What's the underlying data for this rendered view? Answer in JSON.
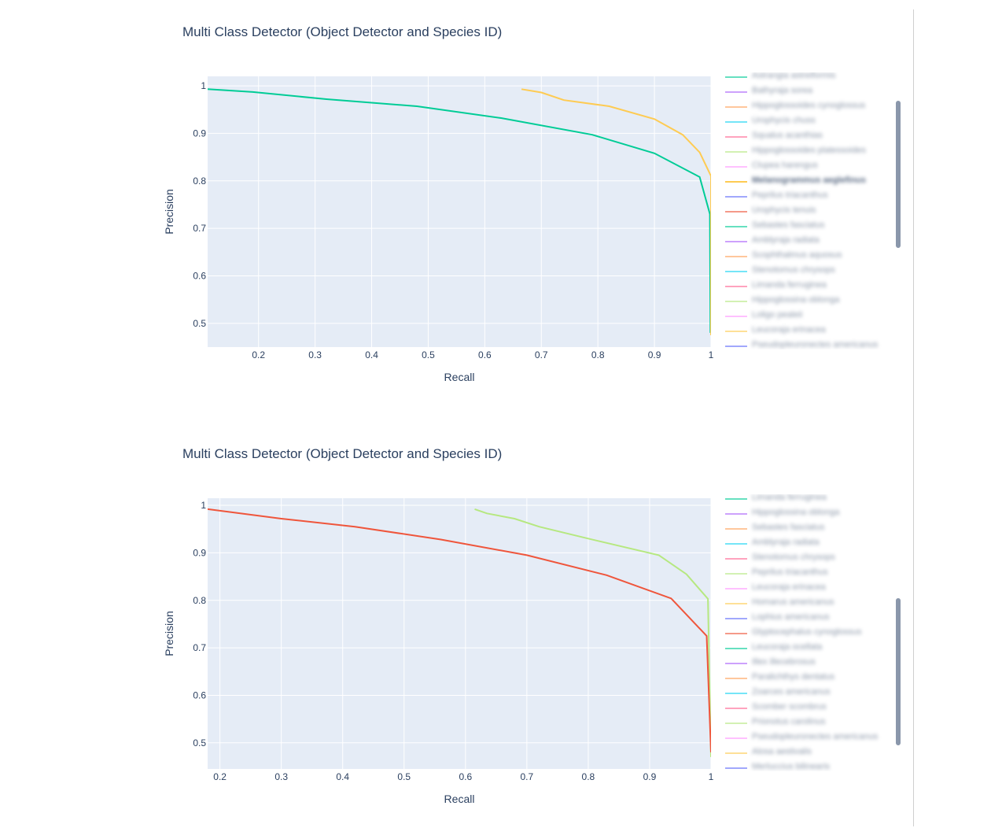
{
  "chart_data": [
    {
      "type": "line",
      "title": "Multi Class Detector (Object Detector and Species ID)",
      "xlabel": "Recall",
      "ylabel": "Precision",
      "xlim": [
        0.11,
        1.0
      ],
      "ylim": [
        0.45,
        1.02
      ],
      "x_ticks": [
        "0.2",
        "0.3",
        "0.4",
        "0.5",
        "0.6",
        "0.7",
        "0.8",
        "0.9",
        "1"
      ],
      "x_tick_values": [
        0.2,
        0.3,
        0.4,
        0.5,
        0.6,
        0.7,
        0.8,
        0.9,
        1.0
      ],
      "y_ticks": [
        "0.5",
        "0.6",
        "0.7",
        "0.8",
        "0.9",
        "1"
      ],
      "y_tick_values": [
        0.5,
        0.6,
        0.7,
        0.8,
        0.9,
        1.0
      ],
      "grid": true,
      "legend_position": "right",
      "series": [
        {
          "color": "#00cc96",
          "x": [
            0.11,
            0.19,
            0.32,
            0.48,
            0.63,
            0.79,
            0.9,
            0.98,
            0.998,
            0.999
          ],
          "y": [
            0.993,
            0.987,
            0.972,
            0.957,
            0.932,
            0.897,
            0.858,
            0.808,
            0.73,
            0.48
          ]
        },
        {
          "color": "#fecb52",
          "x": [
            0.665,
            0.7,
            0.74,
            0.82,
            0.9,
            0.95,
            0.98,
            1.0,
            1.0
          ],
          "y": [
            0.993,
            0.986,
            0.97,
            0.957,
            0.93,
            0.897,
            0.86,
            0.81,
            0.475
          ]
        }
      ],
      "legend": {
        "active_index": 7,
        "entries": [
          {
            "label": "Astrangia astreiformis",
            "color": "#00cc96"
          },
          {
            "label": "Bathyraja sorea",
            "color": "#ab63fa"
          },
          {
            "label": "Hippoglossoides cynoglossus",
            "color": "#ffa15a"
          },
          {
            "label": "Urophycis chuss",
            "color": "#19d3f3"
          },
          {
            "label": "Squalus acanthias",
            "color": "#ff6692"
          },
          {
            "label": "Hippoglossoides platessoides",
            "color": "#b6e880"
          },
          {
            "label": "Clupea harengus",
            "color": "#ff97ff"
          },
          {
            "label": "Melanogrammus aeglefinus",
            "color": "#fecb52"
          },
          {
            "label": "Peprilus triacanthus",
            "color": "#636efa"
          },
          {
            "label": "Urophycis tenuis",
            "color": "#ef553b"
          },
          {
            "label": "Sebastes fasciatus",
            "color": "#00cc96"
          },
          {
            "label": "Amblyraja radiata",
            "color": "#ab63fa"
          },
          {
            "label": "Scophthalmus aquosus",
            "color": "#ffa15a"
          },
          {
            "label": "Stenotomus chrysops",
            "color": "#19d3f3"
          },
          {
            "label": "Limanda ferruginea",
            "color": "#ff6692"
          },
          {
            "label": "Hippoglossina oblonga",
            "color": "#b6e880"
          },
          {
            "label": "Loligo pealeii",
            "color": "#ff97ff"
          },
          {
            "label": "Leucoraja erinacea",
            "color": "#fecb52"
          },
          {
            "label": "Pseudopleuronectes americanus",
            "color": "#636efa"
          }
        ]
      }
    },
    {
      "type": "line",
      "title": "Multi Class Detector (Object Detector and Species ID)",
      "xlabel": "Recall",
      "ylabel": "Precision",
      "xlim": [
        0.18,
        1.0
      ],
      "ylim": [
        0.445,
        1.015
      ],
      "x_ticks": [
        "0.2",
        "0.3",
        "0.4",
        "0.5",
        "0.6",
        "0.7",
        "0.8",
        "0.9",
        "1"
      ],
      "x_tick_values": [
        0.2,
        0.3,
        0.4,
        0.5,
        0.6,
        0.7,
        0.8,
        0.9,
        1.0
      ],
      "y_ticks": [
        "0.5",
        "0.6",
        "0.7",
        "0.8",
        "0.9",
        "1"
      ],
      "y_tick_values": [
        0.5,
        0.6,
        0.7,
        0.8,
        0.9,
        1.0
      ],
      "grid": true,
      "legend_position": "right",
      "series": [
        {
          "color": "#b6e880",
          "x": [
            0.615,
            0.635,
            0.68,
            0.72,
            0.8,
            0.915,
            0.96,
            0.995,
            1.0
          ],
          "y": [
            0.992,
            0.983,
            0.972,
            0.955,
            0.93,
            0.895,
            0.855,
            0.803,
            0.47
          ]
        },
        {
          "color": "#ef553b",
          "x": [
            0.18,
            0.3,
            0.42,
            0.56,
            0.7,
            0.83,
            0.935,
            0.993,
            1.0
          ],
          "y": [
            0.992,
            0.972,
            0.955,
            0.928,
            0.895,
            0.853,
            0.804,
            0.725,
            0.48
          ]
        }
      ],
      "legend": {
        "active_index": -1,
        "entries": [
          {
            "label": "Limanda ferruginea",
            "color": "#00cc96"
          },
          {
            "label": "Hippoglossina oblonga",
            "color": "#ab63fa"
          },
          {
            "label": "Sebastes fasciatus",
            "color": "#ffa15a"
          },
          {
            "label": "Amblyraja radiata",
            "color": "#19d3f3"
          },
          {
            "label": "Stenotomus chrysops",
            "color": "#ff6692"
          },
          {
            "label": "Peprilus triacanthus",
            "color": "#b6e880"
          },
          {
            "label": "Leucoraja erinacea",
            "color": "#ff97ff"
          },
          {
            "label": "Homarus americanus",
            "color": "#fecb52"
          },
          {
            "label": "Lophius americanus",
            "color": "#636efa"
          },
          {
            "label": "Glyptocephalus cynoglossus",
            "color": "#ef553b"
          },
          {
            "label": "Leucoraja ocellata",
            "color": "#00cc96"
          },
          {
            "label": "Illex illecebrosus",
            "color": "#ab63fa"
          },
          {
            "label": "Paralichthys dentatus",
            "color": "#ffa15a"
          },
          {
            "label": "Zoarces americanus",
            "color": "#19d3f3"
          },
          {
            "label": "Scomber scombrus",
            "color": "#ff6692"
          },
          {
            "label": "Prionotus carolinus",
            "color": "#b6e880"
          },
          {
            "label": "Pseudopleuronectes americanus",
            "color": "#ff97ff"
          },
          {
            "label": "Alosa aestivalis",
            "color": "#fecb52"
          },
          {
            "label": "Merluccius bilinearis",
            "color": "#636efa"
          }
        ]
      }
    }
  ]
}
